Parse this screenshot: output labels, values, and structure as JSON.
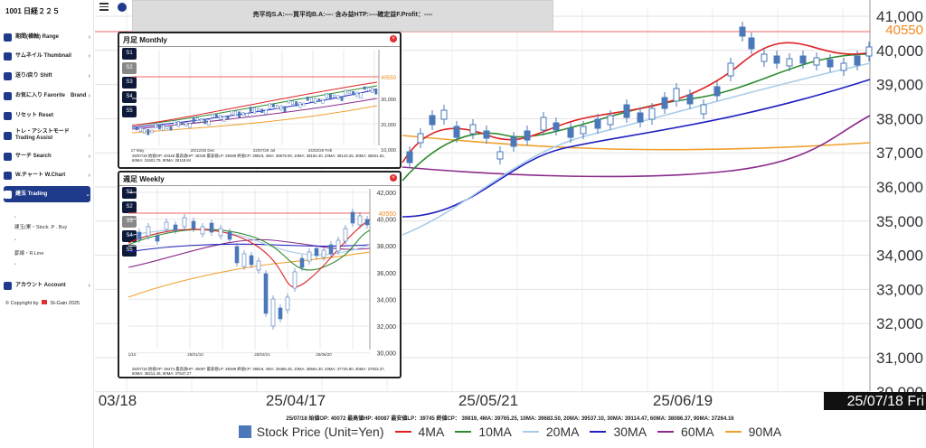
{
  "sidebar": {
    "title": "1001 日経２２５",
    "items": [
      {
        "name": "sidebar-item-range",
        "label": "期間(横軸) Range"
      },
      {
        "name": "sidebar-item-thumbnail",
        "label": "サムネイル Thumbnail"
      },
      {
        "name": "sidebar-item-shift",
        "label": "送り/戻り Shift"
      },
      {
        "name": "sidebar-item-favorite",
        "label": "お気に入り Favorite　Brand"
      },
      {
        "name": "sidebar-item-reset",
        "label": "リセット Reset"
      },
      {
        "name": "sidebar-item-trading-assist",
        "label": "トレ・アシストモード Trading Assist"
      },
      {
        "name": "sidebar-item-search",
        "label": "サーチ Search"
      },
      {
        "name": "sidebar-item-wchart",
        "label": "W.チャート W.Chart"
      },
      {
        "name": "sidebar-item-trading",
        "label": "建玉 Trading"
      }
    ],
    "sub_items": [
      "建玉(累・Stock .P . Buy",
      "罫線・R.Line"
    ],
    "account_label": "アカウント Account",
    "copyright_prefix": "© Copyright by",
    "brand": "St-Gain",
    "year": "2025"
  },
  "topbar": {
    "info": "売平均S.A:----買平均B.A:---- 含み益HTP:----確定益F.Profit：----"
  },
  "main_chart": {
    "x_labels": [
      "03/18",
      "25/04/17",
      "25/05/21",
      "25/06/19",
      "25/07/18 Fri"
    ],
    "y_ticks": [
      "41,000",
      "40,000",
      "39,000",
      "38,000",
      "37,000",
      "36,000",
      "35,000",
      "34,000",
      "33,000",
      "32,000",
      "31,000",
      "30,000"
    ],
    "price_tag": "40550",
    "ohlc_text": "25/07/18 始値OP: 40072  最高値HP: 40087 最安値LP：39745  終値CP：  39819, 4MA: 39765.25, 10MA: 39683.50, 20MA: 39537.10, 30MA: 39114.47, 60MA: 38086.37, 90MA: 37264.16",
    "legend": [
      {
        "label": "Stock Price (Unit=Yen)",
        "color": "#4a78b8",
        "kind": "box"
      },
      {
        "label": "4MA",
        "color": "#e02020",
        "kind": "line"
      },
      {
        "label": "10MA",
        "color": "#2e8b2e",
        "kind": "line"
      },
      {
        "label": "20MA",
        "color": "#a8cce8",
        "kind": "line"
      },
      {
        "label": "30MA",
        "color": "#2020c0",
        "kind": "line"
      },
      {
        "label": "60MA",
        "color": "#8b2a8b",
        "kind": "line"
      },
      {
        "label": "90MA",
        "color": "#f0a030",
        "kind": "line"
      }
    ]
  },
  "monthly_panel": {
    "title": "月足 Monthly",
    "buttons": [
      "S1",
      "S2",
      "S3",
      "S4",
      "S5"
    ],
    "selected": "S2",
    "price_tag": "40550",
    "y_ticks": [
      "30,000",
      "20,000",
      "10,000"
    ],
    "x_labels": [
      "17 May",
      "20/12/30 Dec",
      "22/07/29 Jul",
      "24/02/29 Feb"
    ],
    "ohlc_text": "25/07/18 始値OP: 40348 最高値HP: 40349 最安値LP: 39289 終値CP: 39819, 4MA: 39579.00, 10MA: 38184.40, 20MA: 38143.25, 30MA: 35841.81, 60MA: 31501.75, 90MA: 28118.84"
  },
  "weekly_panel": {
    "title": "週足 Weekly",
    "buttons": [
      "S1",
      "S2",
      "S3",
      "S4",
      "S5"
    ],
    "selected": "S3",
    "price_tag": "40550",
    "y_ticks": [
      "42,000",
      "40,000",
      "38,000",
      "36,000",
      "34,000",
      "32,000",
      "30,000"
    ],
    "x_labels": [
      "1/10",
      "25/01/10",
      "25/03/21",
      "25/06/20"
    ],
    "ohlc_text": "25/07/18 始値OP: 39474 最高値HP: 40087 最安値LP: 39289 終値CP: 39819, 4MA: 39486.25, 10MA: 38564.30, 20MA: 37725.80, 30MA: 37923.37, 60MA: 38214.45, 90MA: 37647.27",
    "legend": [
      "Stock Price (Unit=Yen)",
      "4MA",
      "10MA",
      "20MA",
      "30MA",
      "60MA",
      "90MA"
    ]
  }
}
